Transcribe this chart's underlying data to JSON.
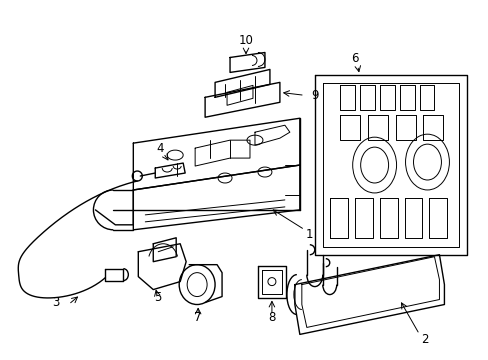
{
  "background_color": "#ffffff",
  "line_color": "#000000",
  "line_width": 1.0,
  "fig_width": 4.89,
  "fig_height": 3.6,
  "dpi": 100,
  "label_fontsize": 8.5
}
